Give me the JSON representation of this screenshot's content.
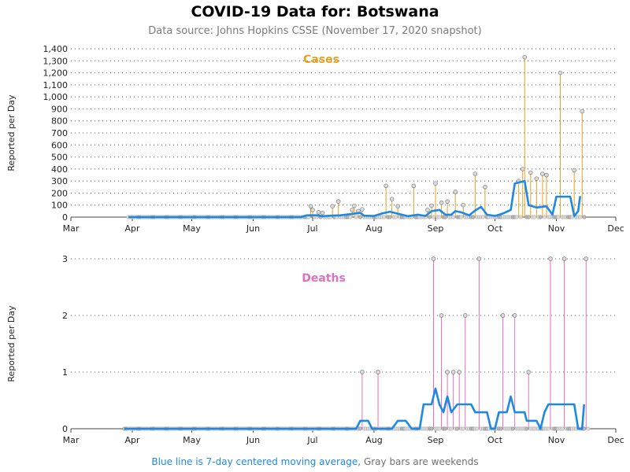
{
  "title": "COVID-19 Data for: Botswana",
  "subtitle": "Data source: Johns Hopkins CSSE (November 17, 2020 snapshot)",
  "footer": {
    "blue_text": "Blue line is 7-day centered moving average,",
    "gray_text": "Gray bars are weekends"
  },
  "colors": {
    "cases": "#e8a020",
    "deaths": "#e070c0",
    "average": "#1e88e5",
    "weekend": "#999999"
  },
  "chart_data": [
    {
      "type": "line",
      "title": "Cases",
      "ylabel": "Reported per Day",
      "ylim": [
        0,
        1400
      ],
      "yticks": [
        0,
        100,
        200,
        300,
        400,
        500,
        600,
        700,
        800,
        900,
        1000,
        1100,
        1200,
        1300,
        1400
      ],
      "ytick_labels": [
        "0",
        "100",
        "200",
        "300",
        "400",
        "500",
        "600",
        "700",
        "800",
        "900",
        "1,000",
        "1,100",
        "1,200",
        "1,300",
        "1,400"
      ],
      "xlim": [
        "2020-03-01",
        "2020-12-01"
      ],
      "xticks": [
        "2020-03-01",
        "2020-04-01",
        "2020-05-01",
        "2020-06-01",
        "2020-07-01",
        "2020-08-01",
        "2020-09-01",
        "2020-10-01",
        "2020-11-01",
        "2020-12-01"
      ],
      "xtick_labels": [
        "Mar",
        "Apr",
        "May",
        "Jun",
        "Jul",
        "Aug",
        "Sep",
        "Oct",
        "Nov",
        "Dec"
      ],
      "grid": "horizontal-dotted",
      "series": [
        {
          "values_by_date": [
            [
              "2020-06-30",
              90
            ],
            [
              "2020-07-01",
              60
            ],
            [
              "2020-07-04",
              40
            ],
            [
              "2020-07-06",
              35
            ],
            [
              "2020-07-11",
              90
            ],
            [
              "2020-07-14",
              130
            ],
            [
              "2020-07-21",
              60
            ],
            [
              "2020-07-22",
              95
            ],
            [
              "2020-07-24",
              50
            ],
            [
              "2020-07-26",
              65
            ],
            [
              "2020-08-07",
              260
            ],
            [
              "2020-08-10",
              150
            ],
            [
              "2020-08-13",
              90
            ],
            [
              "2020-08-21",
              260
            ],
            [
              "2020-08-28",
              60
            ],
            [
              "2020-08-30",
              95
            ],
            [
              "2020-09-01",
              280
            ],
            [
              "2020-09-04",
              120
            ],
            [
              "2020-09-07",
              130
            ],
            [
              "2020-09-11",
              210
            ],
            [
              "2020-09-15",
              100
            ],
            [
              "2020-09-21",
              360
            ],
            [
              "2020-09-26",
              250
            ],
            [
              "2020-10-13",
              300
            ],
            [
              "2020-10-15",
              400
            ],
            [
              "2020-10-16",
              1330
            ],
            [
              "2020-10-19",
              370
            ],
            [
              "2020-10-22",
              320
            ],
            [
              "2020-10-25",
              360
            ],
            [
              "2020-10-27",
              350
            ],
            [
              "2020-11-03",
              1200
            ],
            [
              "2020-11-10",
              390
            ],
            [
              "2020-11-14",
              880
            ]
          ]
        }
      ],
      "moving_average": [
        [
          "2020-03-30",
          0
        ],
        [
          "2020-06-25",
          0
        ],
        [
          "2020-06-28",
          15
        ],
        [
          "2020-07-03",
          15
        ],
        [
          "2020-07-06",
          8
        ],
        [
          "2020-07-10",
          12
        ],
        [
          "2020-07-15",
          15
        ],
        [
          "2020-07-20",
          25
        ],
        [
          "2020-07-25",
          35
        ],
        [
          "2020-07-27",
          12
        ],
        [
          "2020-08-01",
          10
        ],
        [
          "2020-08-05",
          30
        ],
        [
          "2020-08-09",
          45
        ],
        [
          "2020-08-14",
          25
        ],
        [
          "2020-08-18",
          8
        ],
        [
          "2020-08-23",
          20
        ],
        [
          "2020-08-27",
          10
        ],
        [
          "2020-08-30",
          50
        ],
        [
          "2020-09-03",
          60
        ],
        [
          "2020-09-06",
          20
        ],
        [
          "2020-09-09",
          20
        ],
        [
          "2020-09-11",
          50
        ],
        [
          "2020-09-14",
          40
        ],
        [
          "2020-09-18",
          15
        ],
        [
          "2020-09-21",
          55
        ],
        [
          "2020-09-24",
          85
        ],
        [
          "2020-09-27",
          20
        ],
        [
          "2020-10-01",
          10
        ],
        [
          "2020-10-05",
          30
        ],
        [
          "2020-10-09",
          60
        ],
        [
          "2020-10-11",
          280
        ],
        [
          "2020-10-16",
          300
        ],
        [
          "2020-10-18",
          100
        ],
        [
          "2020-10-22",
          80
        ],
        [
          "2020-10-27",
          90
        ],
        [
          "2020-10-30",
          20
        ],
        [
          "2020-11-01",
          170
        ],
        [
          "2020-11-08",
          170
        ],
        [
          "2020-11-10",
          10
        ],
        [
          "2020-11-12",
          50
        ],
        [
          "2020-11-13",
          175
        ]
      ]
    },
    {
      "type": "line",
      "title": "Deaths",
      "ylabel": "Reported per Day",
      "ylim": [
        0,
        3
      ],
      "yticks": [
        0,
        1,
        2,
        3
      ],
      "ytick_labels": [
        "0",
        "1",
        "2",
        "3"
      ],
      "xlim": [
        "2020-03-01",
        "2020-12-01"
      ],
      "xticks": [
        "2020-03-01",
        "2020-04-01",
        "2020-05-01",
        "2020-06-01",
        "2020-07-01",
        "2020-08-01",
        "2020-09-01",
        "2020-10-01",
        "2020-11-01",
        "2020-12-01"
      ],
      "xtick_labels": [
        "Mar",
        "Apr",
        "May",
        "Jun",
        "Jul",
        "Aug",
        "Sep",
        "Oct",
        "Nov",
        "Dec"
      ],
      "grid": "horizontal-dotted",
      "series": [
        {
          "values_by_date": [
            [
              "2020-07-26",
              1
            ],
            [
              "2020-08-03",
              1
            ],
            [
              "2020-08-31",
              3
            ],
            [
              "2020-09-04",
              2
            ],
            [
              "2020-09-07",
              1
            ],
            [
              "2020-09-10",
              1
            ],
            [
              "2020-09-13",
              1
            ],
            [
              "2020-09-16",
              2
            ],
            [
              "2020-09-23",
              3
            ],
            [
              "2020-10-05",
              2
            ],
            [
              "2020-10-11",
              2
            ],
            [
              "2020-10-18",
              1
            ],
            [
              "2020-10-29",
              3
            ],
            [
              "2020-11-05",
              3
            ],
            [
              "2020-11-16",
              3
            ]
          ]
        }
      ],
      "moving_average": [
        [
          "2020-03-28",
          0
        ],
        [
          "2020-07-23",
          0
        ],
        [
          "2020-07-25",
          0.14
        ],
        [
          "2020-07-29",
          0.14
        ],
        [
          "2020-07-31",
          0
        ],
        [
          "2020-08-10",
          0
        ],
        [
          "2020-08-13",
          0.14
        ],
        [
          "2020-08-17",
          0.14
        ],
        [
          "2020-08-20",
          0
        ],
        [
          "2020-08-24",
          0
        ],
        [
          "2020-08-26",
          0.43
        ],
        [
          "2020-08-30",
          0.43
        ],
        [
          "2020-09-01",
          0.71
        ],
        [
          "2020-09-03",
          0.43
        ],
        [
          "2020-09-05",
          0.29
        ],
        [
          "2020-09-07",
          0.57
        ],
        [
          "2020-09-09",
          0.29
        ],
        [
          "2020-09-12",
          0.43
        ],
        [
          "2020-09-19",
          0.43
        ],
        [
          "2020-09-21",
          0.29
        ],
        [
          "2020-09-27",
          0.29
        ],
        [
          "2020-09-29",
          0
        ],
        [
          "2020-10-01",
          0
        ],
        [
          "2020-10-03",
          0.29
        ],
        [
          "2020-10-07",
          0.29
        ],
        [
          "2020-10-09",
          0.57
        ],
        [
          "2020-10-11",
          0.29
        ],
        [
          "2020-10-16",
          0.29
        ],
        [
          "2020-10-17",
          0.14
        ],
        [
          "2020-10-22",
          0.14
        ],
        [
          "2020-10-24",
          0
        ],
        [
          "2020-10-26",
          0.29
        ],
        [
          "2020-10-28",
          0.43
        ],
        [
          "2020-11-10",
          0.43
        ],
        [
          "2020-11-12",
          0
        ],
        [
          "2020-11-14",
          0
        ],
        [
          "2020-11-15",
          0.43
        ]
      ]
    }
  ]
}
